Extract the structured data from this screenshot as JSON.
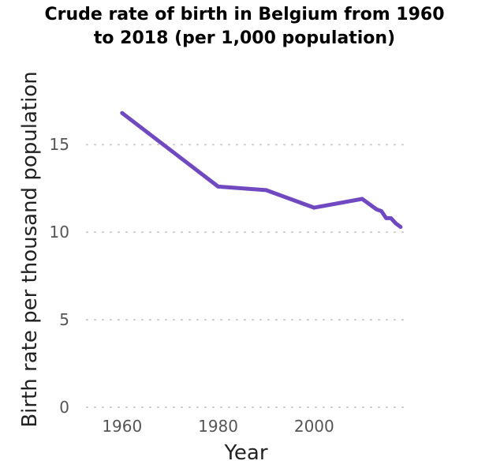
{
  "chart_data": {
    "type": "line",
    "title_lines": [
      "Crude rate of birth in Belgium from 1960",
      "to 2018 (per 1,000 population)"
    ],
    "xlabel": "Year",
    "ylabel": "Birth rate per thousand population",
    "xlim": [
      1951,
      2019
    ],
    "ylim": [
      0,
      19.2
    ],
    "xticks": [
      1960,
      1980,
      2000
    ],
    "yticks": [
      0,
      5,
      10,
      15
    ],
    "grid": "horizontal-dotted",
    "color": "#7048c0",
    "series": [
      {
        "x": [
          1960,
          1980,
          1990,
          2000,
          2010,
          2013,
          2014,
          2015,
          2016,
          2017,
          2018
        ],
        "y": [
          16.8,
          12.6,
          12.4,
          11.4,
          11.9,
          11.3,
          11.2,
          10.8,
          10.8,
          10.5,
          10.3
        ]
      }
    ]
  }
}
